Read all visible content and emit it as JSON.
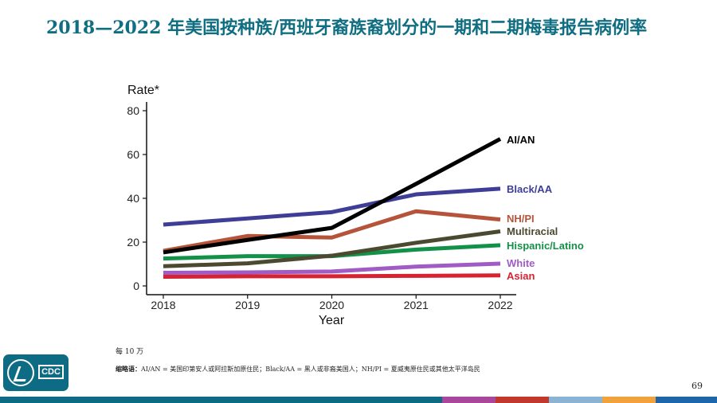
{
  "header": {
    "title": "2018—2022 年美国按种族/西班牙裔族裔划分的一期和二期梅毒报告病例率"
  },
  "chart_data": {
    "type": "line",
    "ylabel": "Rate*",
    "xlabel": "Year",
    "x": [
      2018,
      2019,
      2020,
      2021,
      2022
    ],
    "xlim": [
      2018,
      2022
    ],
    "ylim": [
      0,
      80
    ],
    "y_ticks": [
      0,
      20,
      40,
      60,
      80
    ],
    "grid": false,
    "legend": "direct labels at line ends (right)",
    "series": [
      {
        "name": "AI/AN",
        "color": "#000000",
        "values": [
          15.3,
          21.0,
          26.5,
          46.6,
          67.1
        ]
      },
      {
        "name": "Black/AA",
        "color": "#3e3e96",
        "values": [
          28.0,
          30.8,
          33.7,
          41.8,
          44.4
        ]
      },
      {
        "name": "NH/PI",
        "color": "#b5543a",
        "values": [
          16.0,
          22.8,
          22.1,
          34.1,
          30.3
        ]
      },
      {
        "name": "Multiracial",
        "color": "#4b4a30",
        "values": [
          9.0,
          10.3,
          13.8,
          19.7,
          24.9
        ]
      },
      {
        "name": "Hispanic/Latino",
        "color": "#139148",
        "values": [
          12.5,
          13.6,
          13.6,
          16.6,
          18.6
        ]
      },
      {
        "name": "White",
        "color": "#a05cc4",
        "values": [
          6.0,
          6.2,
          6.6,
          8.8,
          10.2
        ]
      },
      {
        "name": "Asian",
        "color": "#d62231",
        "values": [
          4.2,
          4.4,
          4.4,
          4.6,
          4.8
        ]
      }
    ]
  },
  "footer": {
    "footnote": "每 10 万",
    "abbrev_label": "缩略语：",
    "abbrev_text": "AI/AN = 美国印第安人或阿拉斯加原住民；Black/AA = 黑人或非裔美国人；NH/PI = 夏威夷原住民或其他太平洋岛民",
    "page_number": "69",
    "logo_text": "CDC"
  },
  "colors": {
    "title": "#0f6e82",
    "stripe": [
      "#0d6b84",
      "#a8479b",
      "#c0392b",
      "#8ab4d6",
      "#f1a23b",
      "#1f66a8"
    ]
  }
}
